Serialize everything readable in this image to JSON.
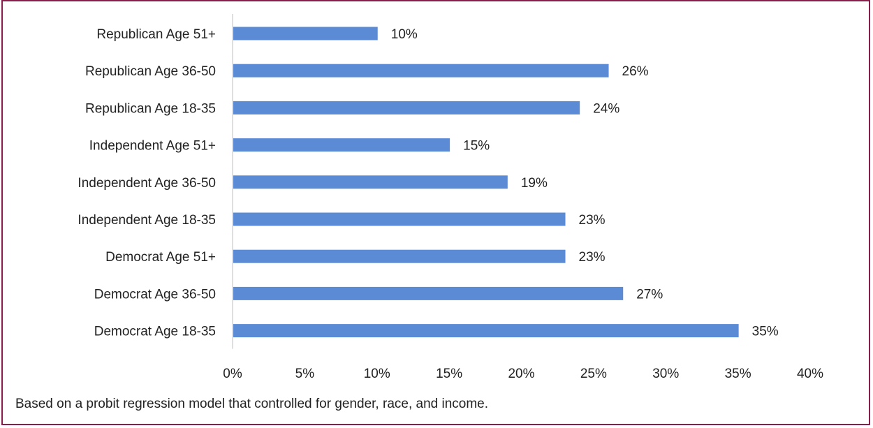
{
  "colors": {
    "bar": "#5b8bd5",
    "frame": "#8a1e4a",
    "axis": "#bfbfbf",
    "text": "#222222"
  },
  "chart_data": {
    "type": "bar",
    "orientation": "horizontal",
    "title": "",
    "xlabel": "",
    "ylabel": "",
    "categories": [
      "Republican Age 51+",
      "Republican Age 36-50",
      "Republican Age 18-35",
      "Independent Age 51+",
      "Independent Age 36-50",
      "Independent Age 18-35",
      "Democrat Age 51+",
      "Democrat Age 36-50",
      "Democrat Age 18-35"
    ],
    "values": [
      10,
      26,
      24,
      15,
      19,
      23,
      23,
      27,
      35
    ],
    "value_labels": [
      "10%",
      "26%",
      "24%",
      "15%",
      "19%",
      "23%",
      "23%",
      "27%",
      "35%"
    ],
    "xlim": [
      0,
      40
    ],
    "x_ticks": [
      0,
      5,
      10,
      15,
      20,
      25,
      30,
      35,
      40
    ],
    "x_tick_labels": [
      "0%",
      "5%",
      "10%",
      "15%",
      "20%",
      "25%",
      "30%",
      "35%",
      "40%"
    ],
    "grid": false,
    "legend": "none"
  },
  "footnote": "Based on a probit regression model that controlled for gender, race, and income."
}
